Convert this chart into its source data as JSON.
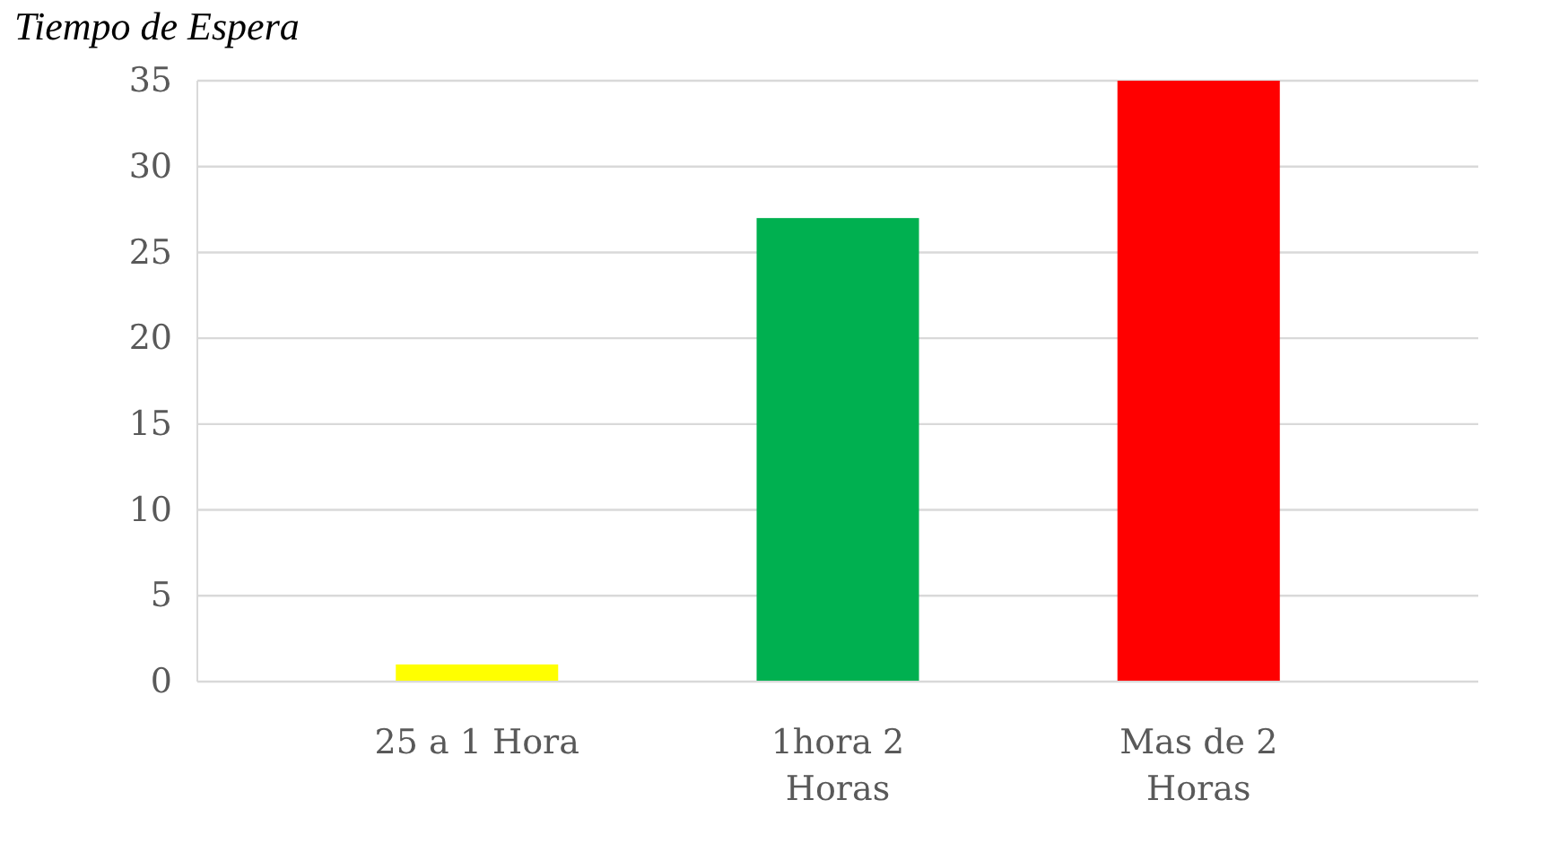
{
  "chart_data": {
    "type": "bar",
    "title": "Tiempo de Espera",
    "categories": [
      "25 a 1 Hora",
      "1hora 2 Horas",
      "Mas de 2 Horas"
    ],
    "values": [
      1,
      27,
      35
    ],
    "colors": [
      "#ffff00",
      "#00b050",
      "#ff0000"
    ],
    "ylim": [
      0,
      35
    ],
    "yticks": [
      0,
      5,
      10,
      15,
      20,
      25,
      30,
      35
    ],
    "grid": "y"
  }
}
